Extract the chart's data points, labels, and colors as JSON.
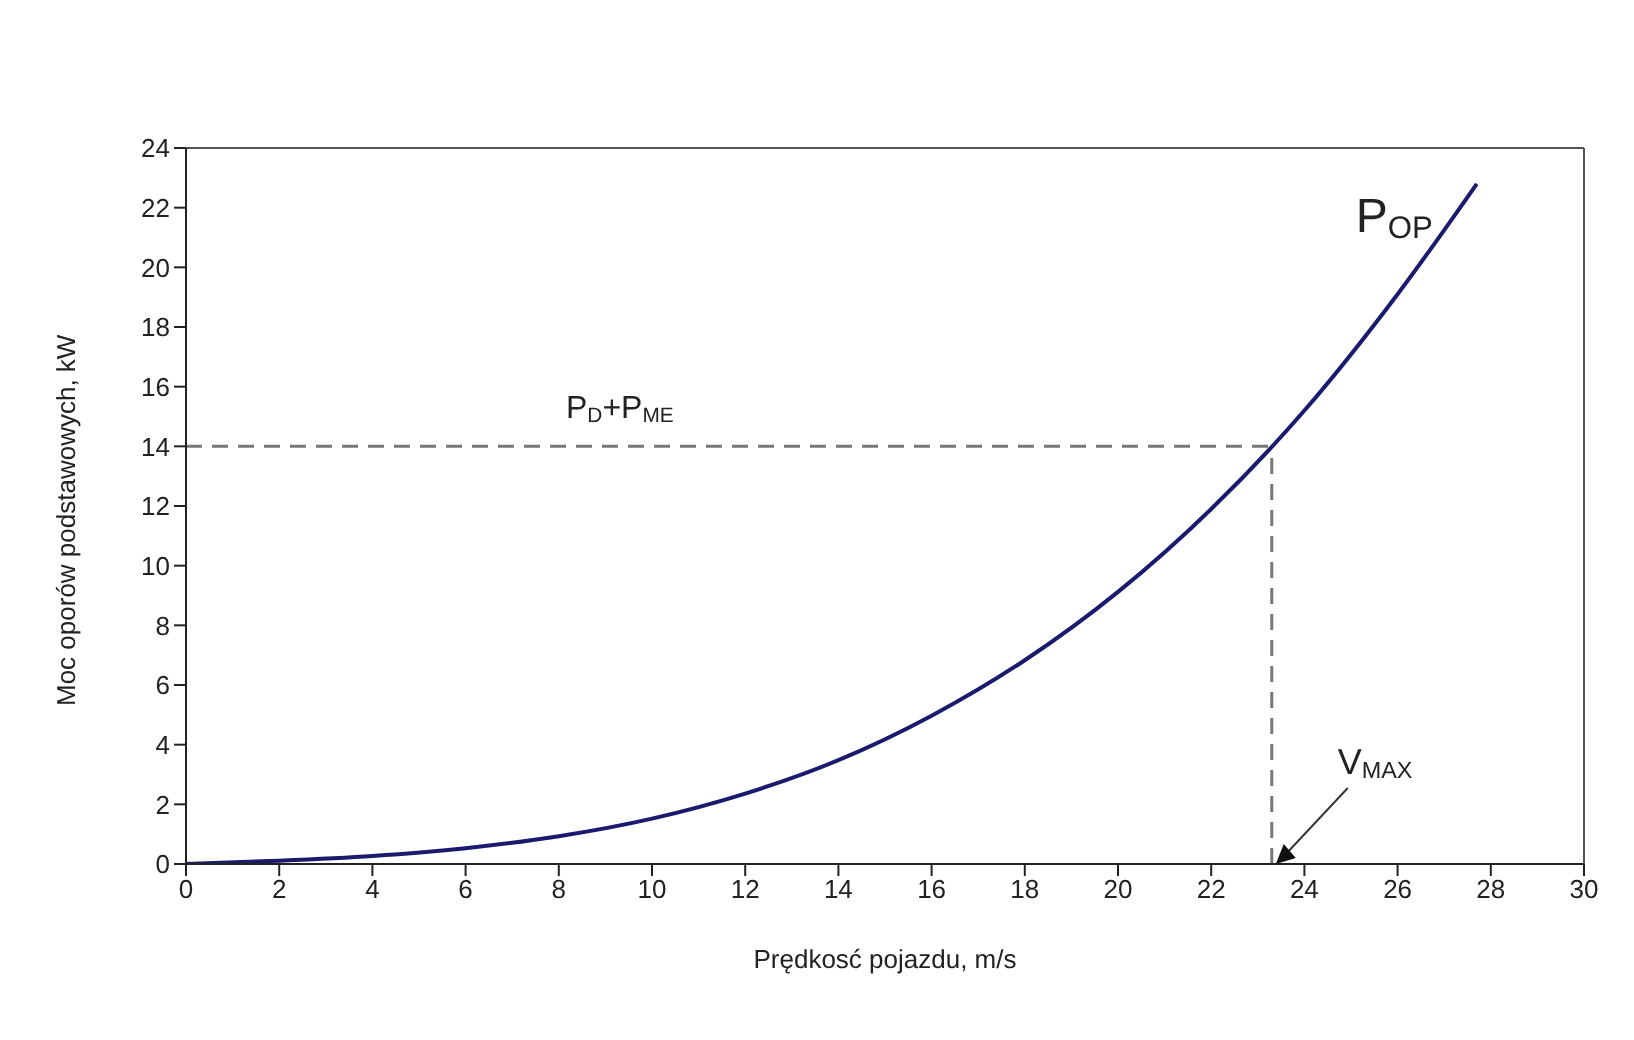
{
  "chart_data": {
    "type": "line",
    "xlabel": "Prędkosć pojazdu, m/s",
    "ylabel": "Moc oporów podstawowych, kW",
    "x": [
      0,
      2,
      4,
      6,
      8,
      10,
      12,
      14,
      16,
      18,
      20,
      22,
      24,
      26,
      27.7
    ],
    "series": [
      {
        "name": "P$_{OP}$",
        "color": "#1a1a6e",
        "values": [
          0,
          0.11,
          0.27,
          0.53,
          0.93,
          1.52,
          2.36,
          3.48,
          4.97,
          6.83,
          9.12,
          11.9,
          15.2,
          19.1,
          22.8
        ]
      }
    ],
    "xlim": [
      0,
      30
    ],
    "xticks": [
      0,
      2,
      4,
      6,
      8,
      10,
      12,
      14,
      16,
      18,
      20,
      22,
      24,
      26,
      28,
      30
    ],
    "ylim": [
      0,
      24
    ],
    "yticks": [
      0,
      2,
      4,
      6,
      8,
      10,
      12,
      14,
      16,
      18,
      20,
      22,
      24
    ],
    "ref_lines": [
      {
        "axis": "y",
        "value": 14,
        "label": "P$_{D}$+P$_{ME}$",
        "color": "#777777",
        "line_style": "dashed"
      },
      {
        "axis": "x",
        "value": 23.3,
        "color": "#777777",
        "line_style": "dashed"
      }
    ],
    "annotations": [
      {
        "text": "V$_{MAX}$",
        "x": 23.3,
        "y": 0
      }
    ],
    "marker": "none",
    "line_style": "solid"
  }
}
